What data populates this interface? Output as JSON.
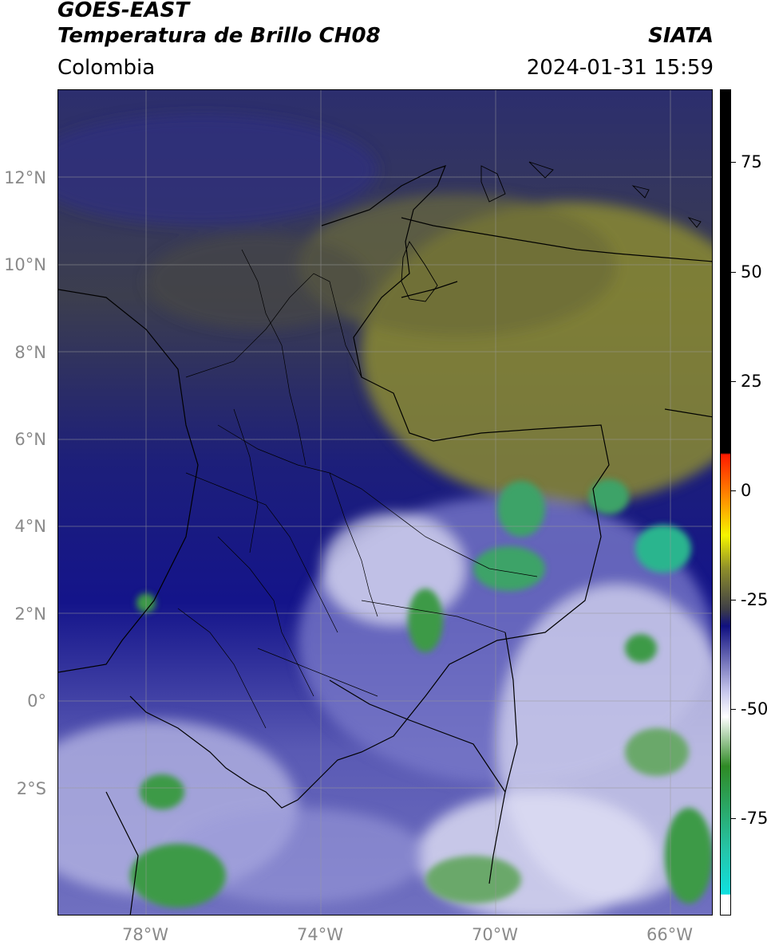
{
  "header": {
    "satellite": "GOES-EAST",
    "product": "Temperatura de Brillo CH08",
    "brand": "SIATA",
    "region": "Colombia",
    "datetime": "2024-01-31 15:59"
  },
  "map": {
    "lat_labels": [
      {
        "text": "12°N",
        "lat": 12
      },
      {
        "text": "10°N",
        "lat": 10
      },
      {
        "text": "8°N",
        "lat": 8
      },
      {
        "text": "6°N",
        "lat": 6
      },
      {
        "text": "4°N",
        "lat": 4
      },
      {
        "text": "2°N",
        "lat": 2
      },
      {
        "text": "0°",
        "lat": 0
      },
      {
        "text": "2°S",
        "lat": -2
      }
    ],
    "lon_labels": [
      {
        "text": "78°W",
        "lon": -78
      },
      {
        "text": "74°W",
        "lon": -74
      },
      {
        "text": "70°W",
        "lon": -70
      },
      {
        "text": "66°W",
        "lon": -66
      }
    ],
    "gridline_color": "#9a9a9a"
  },
  "colorbar": {
    "ticks": [
      {
        "text": "75",
        "value": 75
      },
      {
        "text": "50",
        "value": 50
      },
      {
        "text": "25",
        "value": 25
      },
      {
        "text": "0",
        "value": 0
      },
      {
        "text": "-25",
        "value": -25
      },
      {
        "text": "-50",
        "value": -50
      },
      {
        "text": "-75",
        "value": -75
      }
    ],
    "colors": {
      "black": "#000000",
      "red": "#ff1a00",
      "orange": "#ff9900",
      "yellow": "#f5f500",
      "olive": "#8f8f2a",
      "dark_gray": "#3d3d47",
      "navy": "#101080",
      "light_blue": "#c8c8ec",
      "white": "#ffffff",
      "green": "#2f8a25",
      "teal": "#26c4a7",
      "cyan": "#10e0e0"
    }
  }
}
